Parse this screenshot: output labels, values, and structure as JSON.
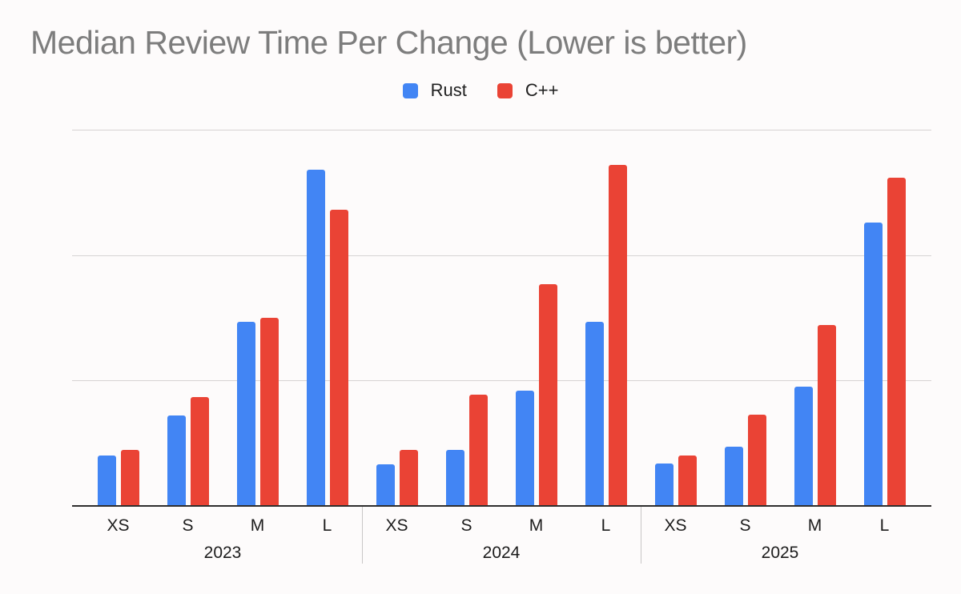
{
  "title": "Median Review Time Per Change (Lower is better)",
  "legend": [
    {
      "label": "Rust",
      "color": "#4285F4"
    },
    {
      "label": "C++",
      "color": "#EA4335"
    }
  ],
  "chart_data": {
    "type": "bar",
    "title": "Median Review Time Per Change (Lower is better)",
    "group_labels": [
      "2023",
      "2024",
      "2025"
    ],
    "categories": [
      "XS",
      "S",
      "M",
      "L",
      "XS",
      "S",
      "M",
      "L",
      "XS",
      "S",
      "M",
      "L"
    ],
    "series": [
      {
        "name": "Rust",
        "color": "#4285F4",
        "values": [
          4.0,
          7.2,
          14.7,
          26.8,
          3.3,
          4.5,
          9.2,
          14.7,
          3.4,
          4.7,
          9.5,
          22.6
        ]
      },
      {
        "name": "C++",
        "color": "#EA4335",
        "values": [
          4.5,
          8.7,
          15.0,
          23.6,
          4.5,
          8.9,
          17.7,
          27.2,
          4.0,
          7.3,
          14.4,
          26.2
        ]
      }
    ],
    "xlabel": "",
    "ylabel": "",
    "ylim": [
      0,
      30
    ],
    "gridlines": [
      10,
      20,
      30
    ],
    "y_axis_labels_visible": false,
    "grid": true,
    "legend_position": "top-center"
  }
}
